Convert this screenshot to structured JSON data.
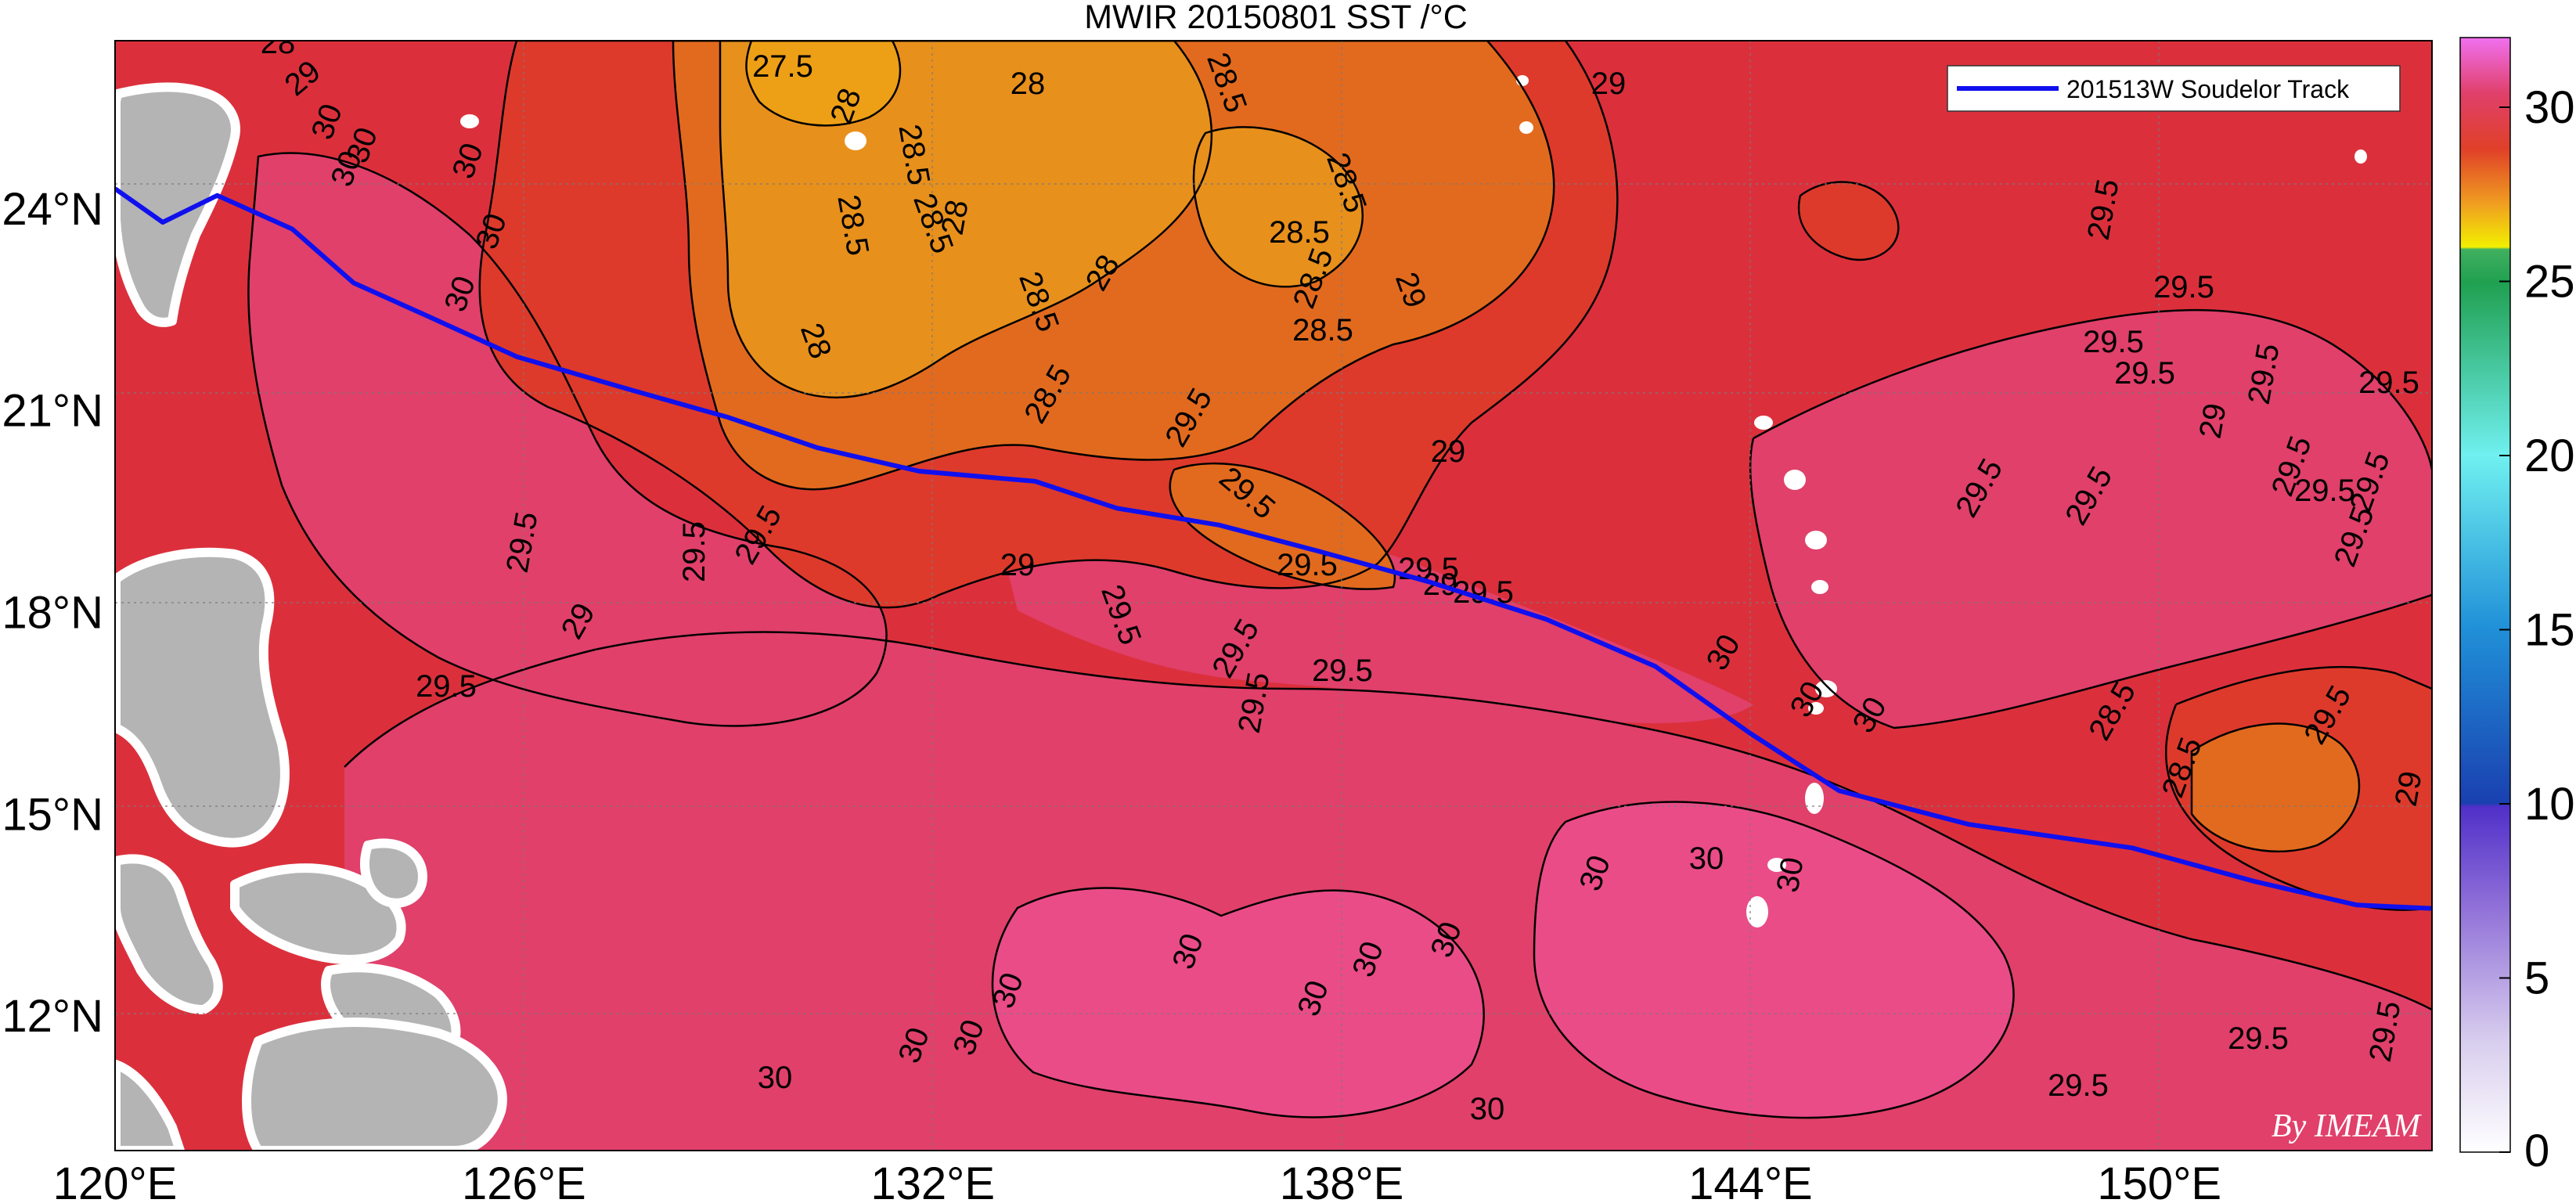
{
  "title": "MWIR 20150801 SST /°C",
  "watermark": "By IMEAM",
  "map": {
    "lon_range": [
      120,
      154
    ],
    "lat_range": [
      10,
      26.5
    ],
    "lon_ticks": [
      "120°E",
      "126°E",
      "132°E",
      "138°E",
      "144°E",
      "150°E"
    ],
    "lat_ticks": [
      "24°N",
      "21°N",
      "18°N",
      "15°N",
      "12°N"
    ],
    "land_color": "#b4b4b4",
    "colors": {
      "sst_30_plus": "#e0406a",
      "sst_29_5": "#db303c",
      "sst_29": "#dd3a2c",
      "sst_28_5": "#e26a1e",
      "sst_28": "#e8901c",
      "sst_27_5": "#eda016"
    }
  },
  "legend": {
    "label": "201513W Soudelor Track",
    "color": "#1010ee"
  },
  "colorbar": {
    "ticks": [
      "30",
      "25",
      "20",
      "15",
      "10",
      "5",
      "0"
    ],
    "range": [
      0,
      32
    ]
  },
  "contour_labels": [
    {
      "t": "28"
    },
    {
      "t": "29"
    },
    {
      "t": "27.5"
    },
    {
      "t": "28"
    },
    {
      "t": "28"
    },
    {
      "t": "28.5"
    },
    {
      "t": "28.5"
    },
    {
      "t": "28.5"
    },
    {
      "t": "28.5"
    },
    {
      "t": "28"
    },
    {
      "t": "28.5"
    },
    {
      "t": "28.5"
    },
    {
      "t": "28"
    },
    {
      "t": "28.5"
    },
    {
      "t": "28.5"
    },
    {
      "t": "28.5"
    },
    {
      "t": "28.5"
    },
    {
      "t": "28"
    },
    {
      "t": "29"
    },
    {
      "t": "29.5"
    },
    {
      "t": "29"
    },
    {
      "t": "29.5"
    },
    {
      "t": "29.5"
    },
    {
      "t": "29.5"
    },
    {
      "t": "29.5"
    },
    {
      "t": "29"
    },
    {
      "t": "29.5"
    },
    {
      "t": "29.5"
    },
    {
      "t": "29.5"
    },
    {
      "t": "29.5"
    },
    {
      "t": "29"
    },
    {
      "t": "29.5"
    },
    {
      "t": "29.5"
    },
    {
      "t": "29.5"
    },
    {
      "t": "29.5"
    },
    {
      "t": "29"
    },
    {
      "t": "30"
    },
    {
      "t": "30"
    },
    {
      "t": "30"
    },
    {
      "t": "30"
    },
    {
      "t": "30"
    },
    {
      "t": "30"
    },
    {
      "t": "30"
    },
    {
      "t": "30"
    },
    {
      "t": "30"
    },
    {
      "t": "30"
    },
    {
      "t": "30"
    },
    {
      "t": "30"
    },
    {
      "t": "29.5"
    },
    {
      "t": "29.5"
    },
    {
      "t": "29.5"
    },
    {
      "t": "29.5"
    },
    {
      "t": "29.5"
    },
    {
      "t": "29.5"
    },
    {
      "t": "29.5"
    },
    {
      "t": "29.5"
    },
    {
      "t": "29"
    },
    {
      "t": "29.5"
    },
    {
      "t": "29.5"
    },
    {
      "t": "29.5"
    },
    {
      "t": "28.5"
    },
    {
      "t": "28.5"
    },
    {
      "t": "29"
    },
    {
      "t": "30"
    },
    {
      "t": "30"
    },
    {
      "t": "30"
    },
    {
      "t": "30"
    },
    {
      "t": "30"
    },
    {
      "t": "30"
    },
    {
      "t": "30"
    },
    {
      "t": "30"
    },
    {
      "t": "30"
    },
    {
      "t": "29"
    },
    {
      "t": "29.5"
    },
    {
      "t": "29.5"
    },
    {
      "t": "29.5"
    },
    {
      "t": "29.5"
    },
    {
      "t": "29.5"
    }
  ],
  "track": [
    [
      120.0,
      24.3
    ],
    [
      120.7,
      23.8
    ],
    [
      121.5,
      24.2
    ],
    [
      122.6,
      23.7
    ],
    [
      123.5,
      22.9
    ],
    [
      124.6,
      22.4
    ],
    [
      125.9,
      21.8
    ],
    [
      127.6,
      21.3
    ],
    [
      129.0,
      20.9
    ],
    [
      130.3,
      20.45
    ],
    [
      131.8,
      20.1
    ],
    [
      133.5,
      19.95
    ],
    [
      134.7,
      19.55
    ],
    [
      136.2,
      19.3
    ],
    [
      137.7,
      18.9
    ],
    [
      139.3,
      18.45
    ],
    [
      141.0,
      17.9
    ],
    [
      142.6,
      17.2
    ],
    [
      144.0,
      16.2
    ],
    [
      145.3,
      15.35
    ],
    [
      147.2,
      14.85
    ],
    [
      149.6,
      14.5
    ],
    [
      151.4,
      14.0
    ],
    [
      152.9,
      13.65
    ],
    [
      154.0,
      13.6
    ]
  ]
}
